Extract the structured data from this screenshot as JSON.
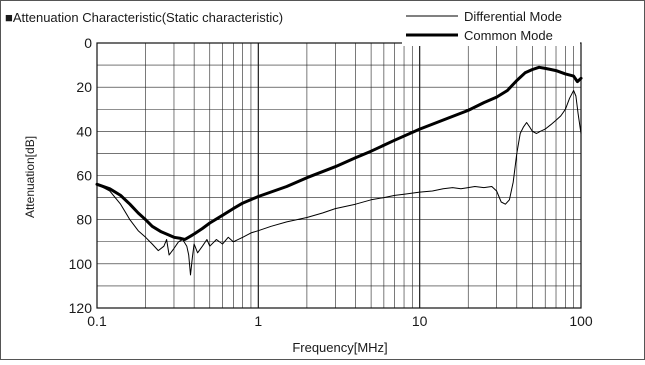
{
  "chart_data": {
    "type": "line",
    "title": "■Attenuation Characteristic(Static characteristic)",
    "xlabel": "Frequency[MHz]",
    "ylabel": "Attenuation[dB]",
    "x_scale": "log",
    "x_range": [
      0.1,
      100
    ],
    "y_range": [
      0,
      120
    ],
    "y_inverted": true,
    "grid": true,
    "legend_position": "top-right",
    "x_ticks": [
      {
        "value": 0.1,
        "label": "0.1"
      },
      {
        "value": 1,
        "label": "1"
      },
      {
        "value": 10,
        "label": "10"
      },
      {
        "value": 100,
        "label": "100"
      }
    ],
    "y_ticks": [
      {
        "value": 0,
        "label": "0"
      },
      {
        "value": 20,
        "label": "20"
      },
      {
        "value": 40,
        "label": "40"
      },
      {
        "value": 60,
        "label": "60"
      },
      {
        "value": 80,
        "label": "80"
      },
      {
        "value": 100,
        "label": "100"
      },
      {
        "value": 120,
        "label": "120"
      }
    ],
    "series": [
      {
        "name": "Differential Mode",
        "style": "thin",
        "color": "#000000",
        "points": [
          [
            0.1,
            64
          ],
          [
            0.12,
            67
          ],
          [
            0.14,
            73
          ],
          [
            0.16,
            80
          ],
          [
            0.18,
            85
          ],
          [
            0.2,
            88
          ],
          [
            0.22,
            91
          ],
          [
            0.24,
            94
          ],
          [
            0.26,
            92
          ],
          [
            0.27,
            89
          ],
          [
            0.28,
            96
          ],
          [
            0.3,
            93
          ],
          [
            0.32,
            90
          ],
          [
            0.34,
            89
          ],
          [
            0.36,
            92
          ],
          [
            0.37,
            96
          ],
          [
            0.38,
            105
          ],
          [
            0.39,
            97
          ],
          [
            0.4,
            91
          ],
          [
            0.42,
            95
          ],
          [
            0.45,
            92
          ],
          [
            0.48,
            89
          ],
          [
            0.5,
            92
          ],
          [
            0.55,
            89
          ],
          [
            0.6,
            91
          ],
          [
            0.65,
            88
          ],
          [
            0.7,
            90
          ],
          [
            0.8,
            88
          ],
          [
            0.9,
            86
          ],
          [
            1.0,
            85
          ],
          [
            1.2,
            83
          ],
          [
            1.5,
            81
          ],
          [
            2,
            79
          ],
          [
            2.5,
            77
          ],
          [
            3,
            75
          ],
          [
            4,
            73
          ],
          [
            5,
            71
          ],
          [
            6,
            70
          ],
          [
            7,
            69
          ],
          [
            8,
            68.5
          ],
          [
            10,
            67.5
          ],
          [
            12,
            67
          ],
          [
            14,
            66
          ],
          [
            16,
            65.5
          ],
          [
            18,
            66
          ],
          [
            20,
            65.5
          ],
          [
            22,
            65
          ],
          [
            25,
            65.5
          ],
          [
            28,
            65
          ],
          [
            30,
            67
          ],
          [
            32,
            72
          ],
          [
            34,
            73
          ],
          [
            36,
            71
          ],
          [
            38,
            63
          ],
          [
            40,
            50
          ],
          [
            42,
            41
          ],
          [
            44,
            38
          ],
          [
            46,
            36
          ],
          [
            48,
            38
          ],
          [
            50,
            40
          ],
          [
            53,
            41
          ],
          [
            56,
            40
          ],
          [
            60,
            39
          ],
          [
            65,
            37
          ],
          [
            70,
            35
          ],
          [
            75,
            33
          ],
          [
            80,
            30
          ],
          [
            85,
            25
          ],
          [
            90,
            21.5
          ],
          [
            93,
            24
          ],
          [
            96,
            32
          ],
          [
            100,
            41
          ]
        ]
      },
      {
        "name": "Common Mode",
        "style": "thick",
        "color": "#000000",
        "points": [
          [
            0.1,
            64
          ],
          [
            0.12,
            66
          ],
          [
            0.14,
            69
          ],
          [
            0.16,
            73
          ],
          [
            0.18,
            77
          ],
          [
            0.2,
            80
          ],
          [
            0.22,
            83
          ],
          [
            0.25,
            85.5
          ],
          [
            0.28,
            87
          ],
          [
            0.3,
            88
          ],
          [
            0.33,
            88.5
          ],
          [
            0.35,
            89
          ],
          [
            0.38,
            87.5
          ],
          [
            0.4,
            86.5
          ],
          [
            0.45,
            84
          ],
          [
            0.5,
            81.5
          ],
          [
            0.6,
            78
          ],
          [
            0.7,
            75
          ],
          [
            0.8,
            72.5
          ],
          [
            1.0,
            69.5
          ],
          [
            1.5,
            65
          ],
          [
            2,
            61
          ],
          [
            3,
            56
          ],
          [
            4,
            52
          ],
          [
            5,
            49
          ],
          [
            7,
            44
          ],
          [
            10,
            39
          ],
          [
            15,
            34
          ],
          [
            20,
            30.5
          ],
          [
            25,
            27
          ],
          [
            30,
            24.5
          ],
          [
            35,
            21.5
          ],
          [
            40,
            17
          ],
          [
            45,
            13.5
          ],
          [
            50,
            12
          ],
          [
            55,
            11
          ],
          [
            60,
            11.5
          ],
          [
            65,
            12
          ],
          [
            70,
            12.5
          ],
          [
            80,
            14
          ],
          [
            90,
            15
          ],
          [
            95,
            17.5
          ],
          [
            100,
            16
          ]
        ]
      }
    ]
  }
}
